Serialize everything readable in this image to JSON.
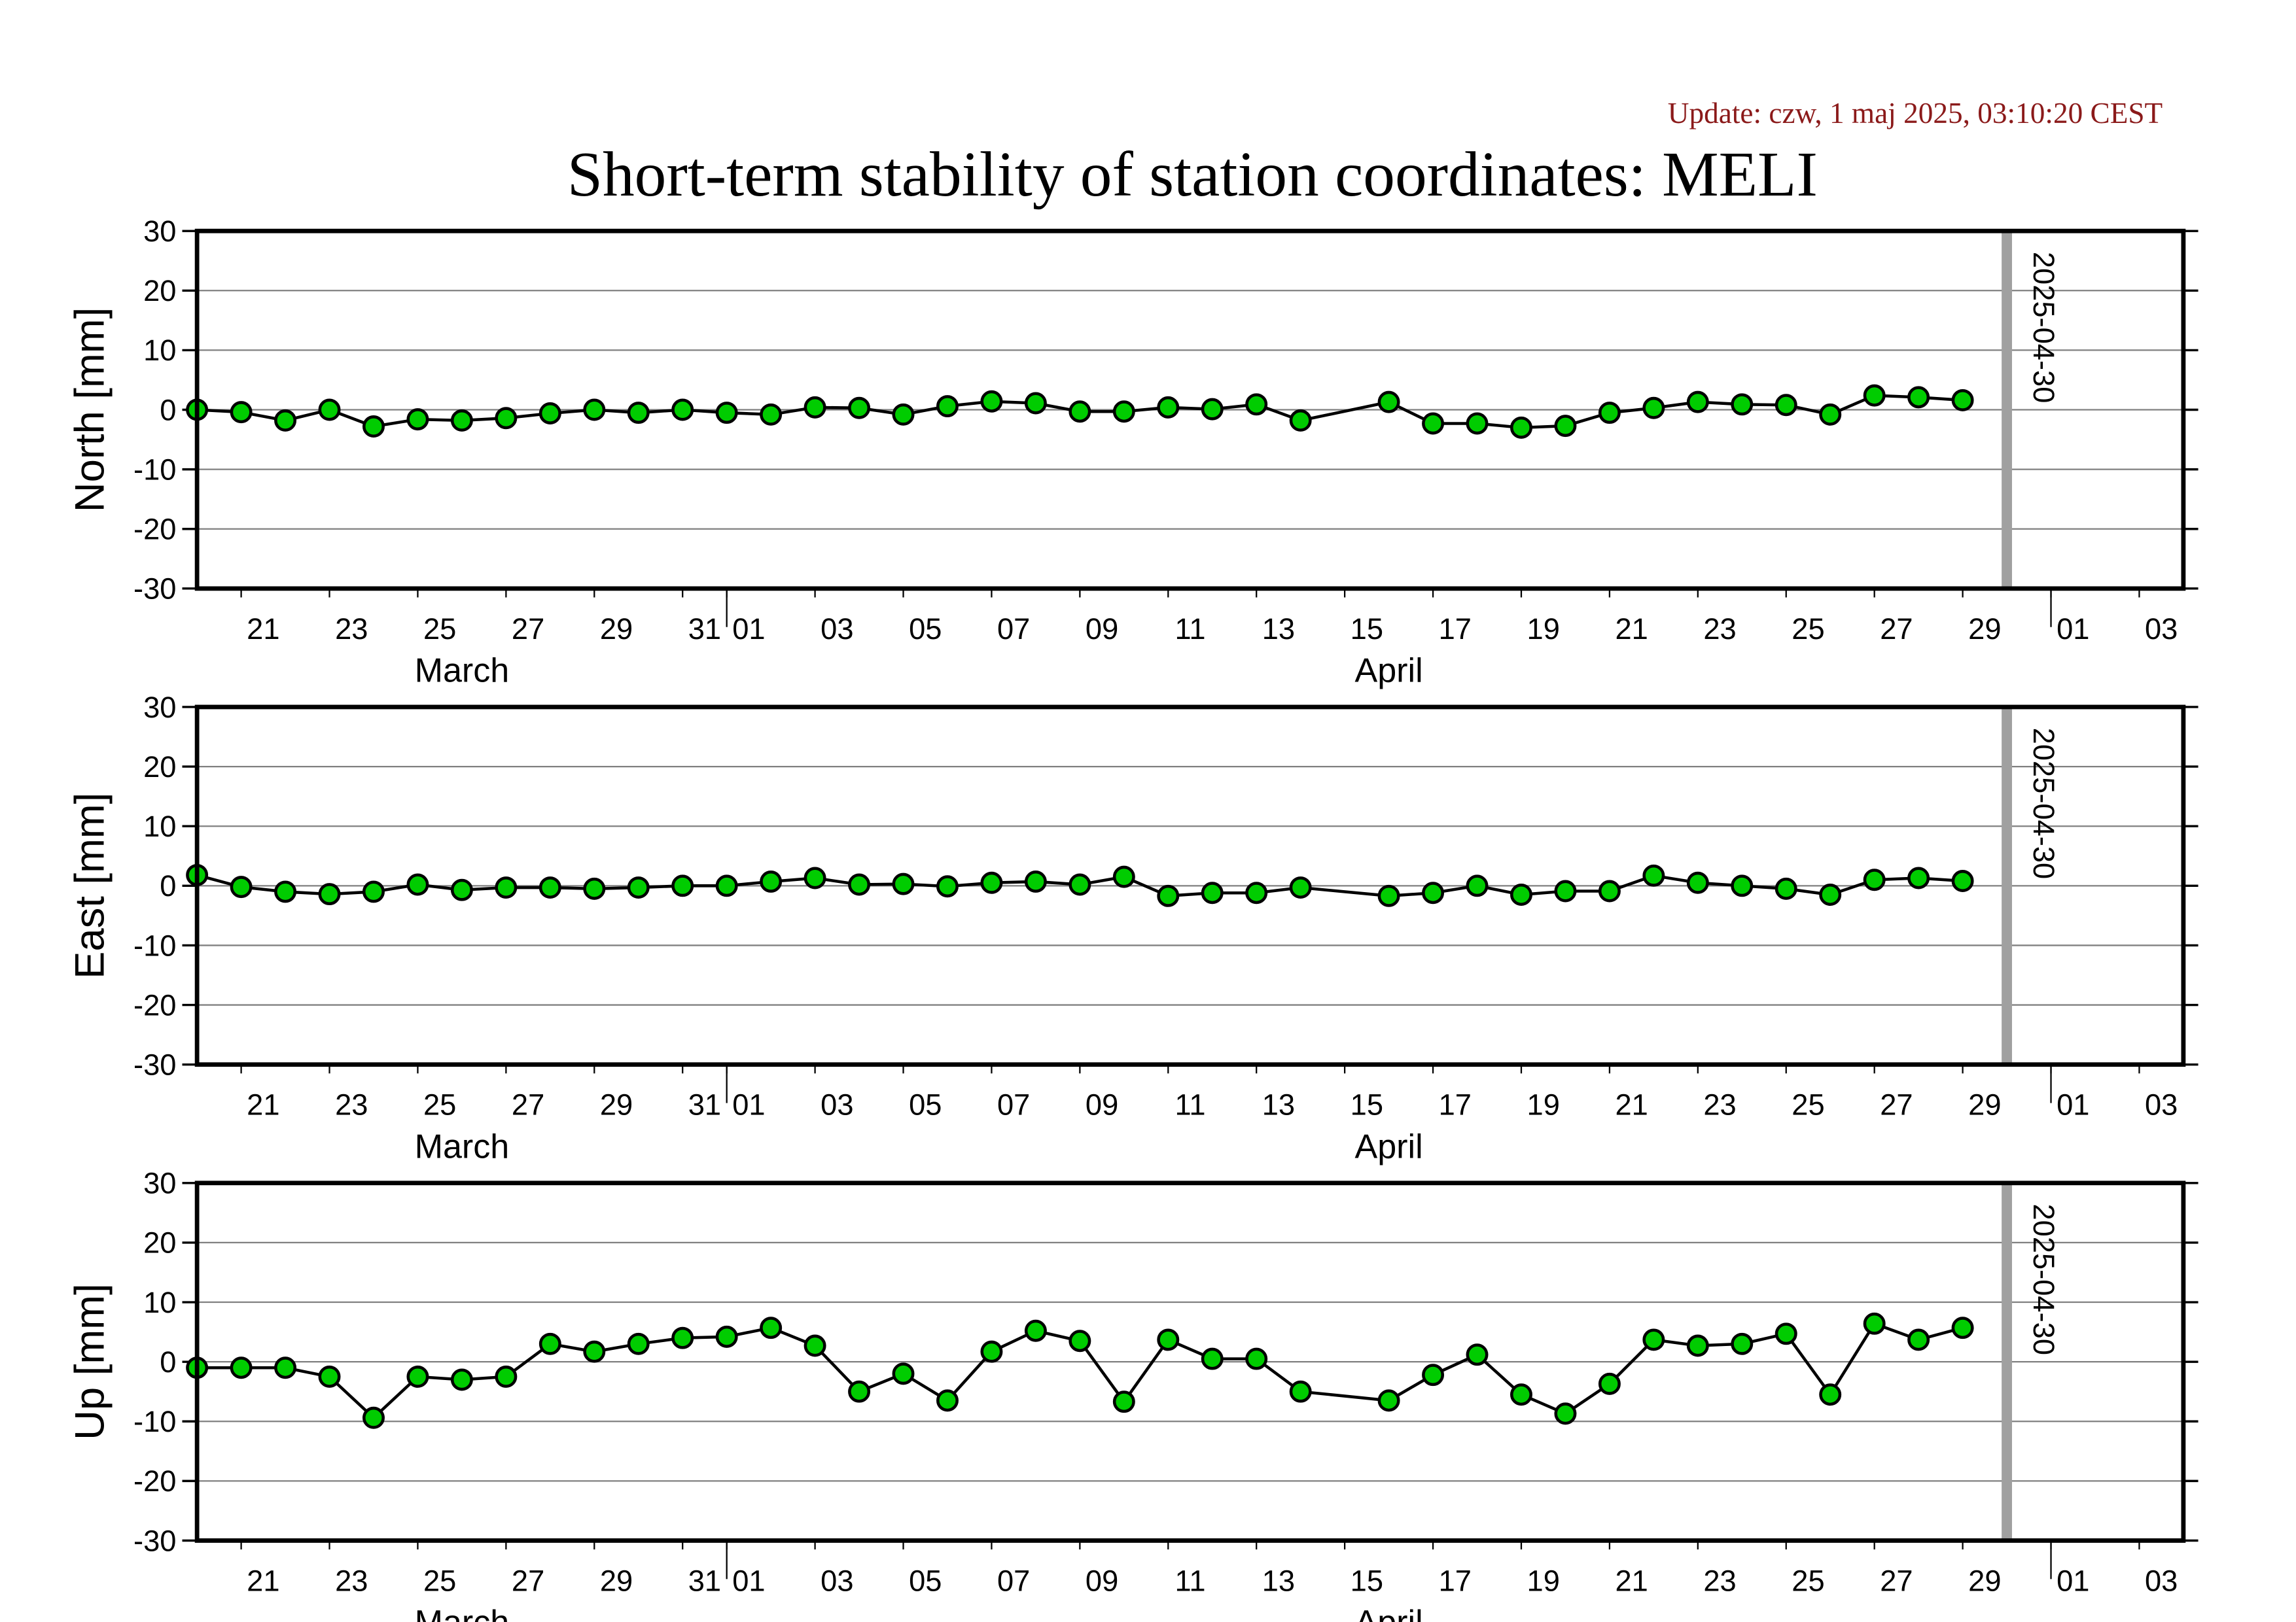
{
  "header": {
    "update": "Update: czw, 1 maj 2025, 03:10:20 CEST",
    "title": "Short-term stability of station coordinates: MELI"
  },
  "chart_data": [
    {
      "type": "line",
      "ylabel": "North [mm]",
      "x": [
        "2025-03-20",
        "2025-03-21",
        "2025-03-22",
        "2025-03-23",
        "2025-03-24",
        "2025-03-25",
        "2025-03-26",
        "2025-03-27",
        "2025-03-28",
        "2025-03-29",
        "2025-03-30",
        "2025-03-31",
        "2025-04-01",
        "2025-04-02",
        "2025-04-03",
        "2025-04-04",
        "2025-04-05",
        "2025-04-06",
        "2025-04-07",
        "2025-04-08",
        "2025-04-09",
        "2025-04-10",
        "2025-04-11",
        "2025-04-12",
        "2025-04-13",
        "2025-04-14",
        "2025-04-16",
        "2025-04-17",
        "2025-04-18",
        "2025-04-19",
        "2025-04-20",
        "2025-04-21",
        "2025-04-22",
        "2025-04-23",
        "2025-04-24",
        "2025-04-25",
        "2025-04-26",
        "2025-04-27",
        "2025-04-28",
        "2025-04-29"
      ],
      "values": [
        0,
        -0.4,
        -1.8,
        0,
        -2.8,
        -1.6,
        -1.8,
        -1.4,
        -0.6,
        0,
        -0.5,
        0,
        -0.5,
        -0.8,
        0.4,
        0.3,
        -0.8,
        0.6,
        1.4,
        1.1,
        -0.3,
        -0.3,
        0.4,
        0.1,
        0.9,
        -1.8,
        1.3,
        -2.3,
        -2.3,
        -3.0,
        -2.7,
        -0.5,
        0.3,
        1.3,
        0.9,
        0.8,
        -0.8,
        2.4,
        2.1,
        1.6
      ],
      "color": "#00cc00",
      "line_color": "#000000",
      "ylim": [
        -30,
        30
      ],
      "yticks": [
        -30,
        -20,
        -10,
        0,
        10,
        20,
        30
      ],
      "grid": true,
      "xlim": [
        "2025-03-20",
        "2025-05-04"
      ],
      "xticks": [
        {
          "value": "2025-03-21",
          "label": "21"
        },
        {
          "value": "2025-03-23",
          "label": "23"
        },
        {
          "value": "2025-03-25",
          "label": "25"
        },
        {
          "value": "2025-03-27",
          "label": "27"
        },
        {
          "value": "2025-03-29",
          "label": "29"
        },
        {
          "value": "2025-03-31",
          "label": "31"
        },
        {
          "value": "2025-04-01",
          "label": "01"
        },
        {
          "value": "2025-04-03",
          "label": "03"
        },
        {
          "value": "2025-04-05",
          "label": "05"
        },
        {
          "value": "2025-04-07",
          "label": "07"
        },
        {
          "value": "2025-04-09",
          "label": "09"
        },
        {
          "value": "2025-04-11",
          "label": "11"
        },
        {
          "value": "2025-04-13",
          "label": "13"
        },
        {
          "value": "2025-04-15",
          "label": "15"
        },
        {
          "value": "2025-04-17",
          "label": "17"
        },
        {
          "value": "2025-04-19",
          "label": "19"
        },
        {
          "value": "2025-04-21",
          "label": "21"
        },
        {
          "value": "2025-04-23",
          "label": "23"
        },
        {
          "value": "2025-04-25",
          "label": "25"
        },
        {
          "value": "2025-04-27",
          "label": "27"
        },
        {
          "value": "2025-04-29",
          "label": "29"
        },
        {
          "value": "2025-05-01",
          "label": "01"
        },
        {
          "value": "2025-05-03",
          "label": "03"
        }
      ],
      "xmonths": [
        {
          "value": "2025-03",
          "label": "March"
        },
        {
          "value": "2025-04",
          "label": "April"
        }
      ],
      "vline": "2025-04-30",
      "vline_color": "#a0a0a0"
    },
    {
      "type": "line",
      "ylabel": "East [mm]",
      "x": [
        "2025-03-20",
        "2025-03-21",
        "2025-03-22",
        "2025-03-23",
        "2025-03-24",
        "2025-03-25",
        "2025-03-26",
        "2025-03-27",
        "2025-03-28",
        "2025-03-29",
        "2025-03-30",
        "2025-03-31",
        "2025-04-01",
        "2025-04-02",
        "2025-04-03",
        "2025-04-04",
        "2025-04-05",
        "2025-04-06",
        "2025-04-07",
        "2025-04-08",
        "2025-04-09",
        "2025-04-10",
        "2025-04-11",
        "2025-04-12",
        "2025-04-13",
        "2025-04-14",
        "2025-04-16",
        "2025-04-17",
        "2025-04-18",
        "2025-04-19",
        "2025-04-20",
        "2025-04-21",
        "2025-04-22",
        "2025-04-23",
        "2025-04-24",
        "2025-04-25",
        "2025-04-26",
        "2025-04-27",
        "2025-04-28",
        "2025-04-29"
      ],
      "values": [
        1.8,
        -0.2,
        -1.0,
        -1.4,
        -1.0,
        0.2,
        -0.7,
        -0.3,
        -0.3,
        -0.5,
        -0.3,
        0,
        0,
        0.7,
        1.3,
        0.2,
        0.3,
        -0.1,
        0.5,
        0.7,
        0.2,
        1.5,
        -1.7,
        -1.2,
        -1.2,
        -0.3,
        -1.7,
        -1.2,
        0,
        -1.5,
        -0.9,
        -0.9,
        1.7,
        0.5,
        0,
        -0.5,
        -1.5,
        1.0,
        1.3,
        0.8
      ],
      "color": "#00cc00",
      "line_color": "#000000",
      "ylim": [
        -30,
        30
      ],
      "yticks": [
        -30,
        -20,
        -10,
        0,
        10,
        20,
        30
      ],
      "grid": true,
      "xlim": [
        "2025-03-20",
        "2025-05-04"
      ],
      "xticks": [
        {
          "value": "2025-03-21",
          "label": "21"
        },
        {
          "value": "2025-03-23",
          "label": "23"
        },
        {
          "value": "2025-03-25",
          "label": "25"
        },
        {
          "value": "2025-03-27",
          "label": "27"
        },
        {
          "value": "2025-03-29",
          "label": "29"
        },
        {
          "value": "2025-03-31",
          "label": "31"
        },
        {
          "value": "2025-04-01",
          "label": "01"
        },
        {
          "value": "2025-04-03",
          "label": "03"
        },
        {
          "value": "2025-04-05",
          "label": "05"
        },
        {
          "value": "2025-04-07",
          "label": "07"
        },
        {
          "value": "2025-04-09",
          "label": "09"
        },
        {
          "value": "2025-04-11",
          "label": "11"
        },
        {
          "value": "2025-04-13",
          "label": "13"
        },
        {
          "value": "2025-04-15",
          "label": "15"
        },
        {
          "value": "2025-04-17",
          "label": "17"
        },
        {
          "value": "2025-04-19",
          "label": "19"
        },
        {
          "value": "2025-04-21",
          "label": "21"
        },
        {
          "value": "2025-04-23",
          "label": "23"
        },
        {
          "value": "2025-04-25",
          "label": "25"
        },
        {
          "value": "2025-04-27",
          "label": "27"
        },
        {
          "value": "2025-04-29",
          "label": "29"
        },
        {
          "value": "2025-05-01",
          "label": "01"
        },
        {
          "value": "2025-05-03",
          "label": "03"
        }
      ],
      "xmonths": [
        {
          "value": "2025-03",
          "label": "March"
        },
        {
          "value": "2025-04",
          "label": "April"
        }
      ],
      "vline": "2025-04-30",
      "vline_color": "#a0a0a0"
    },
    {
      "type": "line",
      "ylabel": "Up [mm]",
      "x": [
        "2025-03-20",
        "2025-03-21",
        "2025-03-22",
        "2025-03-23",
        "2025-03-24",
        "2025-03-25",
        "2025-03-26",
        "2025-03-27",
        "2025-03-28",
        "2025-03-29",
        "2025-03-30",
        "2025-03-31",
        "2025-04-01",
        "2025-04-02",
        "2025-04-03",
        "2025-04-04",
        "2025-04-05",
        "2025-04-06",
        "2025-04-07",
        "2025-04-08",
        "2025-04-09",
        "2025-04-10",
        "2025-04-11",
        "2025-04-12",
        "2025-04-13",
        "2025-04-14",
        "2025-04-16",
        "2025-04-17",
        "2025-04-18",
        "2025-04-19",
        "2025-04-20",
        "2025-04-21",
        "2025-04-22",
        "2025-04-23",
        "2025-04-24",
        "2025-04-25",
        "2025-04-26",
        "2025-04-27",
        "2025-04-28",
        "2025-04-29"
      ],
      "values": [
        -1.0,
        -1.0,
        -1.0,
        -2.5,
        -9.4,
        -2.5,
        -3.0,
        -2.5,
        3.0,
        1.7,
        3.0,
        4.0,
        4.2,
        5.7,
        2.7,
        -5.0,
        -2.0,
        -6.5,
        1.7,
        5.2,
        3.5,
        -6.7,
        3.7,
        0.5,
        0.5,
        -5.0,
        -6.5,
        -2.2,
        1.2,
        -5.5,
        -8.7,
        -3.7,
        3.7,
        2.7,
        3.0,
        4.7,
        -5.5,
        6.4,
        3.7,
        5.7
      ],
      "color": "#00cc00",
      "line_color": "#000000",
      "ylim": [
        -30,
        30
      ],
      "yticks": [
        -30,
        -20,
        -10,
        0,
        10,
        20,
        30
      ],
      "grid": true,
      "xlim": [
        "2025-03-20",
        "2025-05-04"
      ],
      "xticks": [
        {
          "value": "2025-03-21",
          "label": "21"
        },
        {
          "value": "2025-03-23",
          "label": "23"
        },
        {
          "value": "2025-03-25",
          "label": "25"
        },
        {
          "value": "2025-03-27",
          "label": "27"
        },
        {
          "value": "2025-03-29",
          "label": "29"
        },
        {
          "value": "2025-03-31",
          "label": "31"
        },
        {
          "value": "2025-04-01",
          "label": "01"
        },
        {
          "value": "2025-04-03",
          "label": "03"
        },
        {
          "value": "2025-04-05",
          "label": "05"
        },
        {
          "value": "2025-04-07",
          "label": "07"
        },
        {
          "value": "2025-04-09",
          "label": "09"
        },
        {
          "value": "2025-04-11",
          "label": "11"
        },
        {
          "value": "2025-04-13",
          "label": "13"
        },
        {
          "value": "2025-04-15",
          "label": "15"
        },
        {
          "value": "2025-04-17",
          "label": "17"
        },
        {
          "value": "2025-04-19",
          "label": "19"
        },
        {
          "value": "2025-04-21",
          "label": "21"
        },
        {
          "value": "2025-04-23",
          "label": "23"
        },
        {
          "value": "2025-04-25",
          "label": "25"
        },
        {
          "value": "2025-04-27",
          "label": "27"
        },
        {
          "value": "2025-04-29",
          "label": "29"
        },
        {
          "value": "2025-05-01",
          "label": "01"
        },
        {
          "value": "2025-05-03",
          "label": "03"
        }
      ],
      "xmonths": [
        {
          "value": "2025-03",
          "label": "March"
        },
        {
          "value": "2025-04",
          "label": "April"
        }
      ],
      "vline": "2025-04-30",
      "vline_color": "#a0a0a0"
    }
  ]
}
